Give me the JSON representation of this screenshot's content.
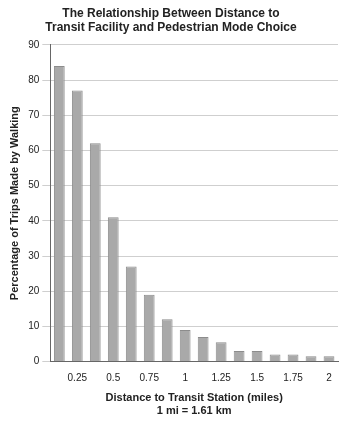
{
  "chart_data": {
    "type": "bar",
    "title": [
      "The Relationship Between Distance to",
      "Transit Facility and Pedestrian Mode Choice"
    ],
    "x_label": [
      "Distance to Transit Station (miles)",
      "1 mi = 1.61 km"
    ],
    "y_label": "Percentage of Trips Made by Walking",
    "categories": [
      null,
      "0.25",
      null,
      "0.5",
      null,
      "0.75",
      null,
      "1",
      null,
      "1.25",
      null,
      "1.5",
      null,
      "1.75",
      null,
      "2"
    ],
    "values": [
      84,
      77,
      62,
      41,
      27,
      19,
      12,
      9,
      7,
      5.5,
      3,
      3,
      2,
      2,
      1.5,
      1.5
    ],
    "color": "#a9a9a9",
    "ylim": [
      0,
      90
    ],
    "yticks": [
      0,
      10,
      20,
      30,
      40,
      50,
      60,
      70,
      80,
      90
    ],
    "grid": true
  }
}
